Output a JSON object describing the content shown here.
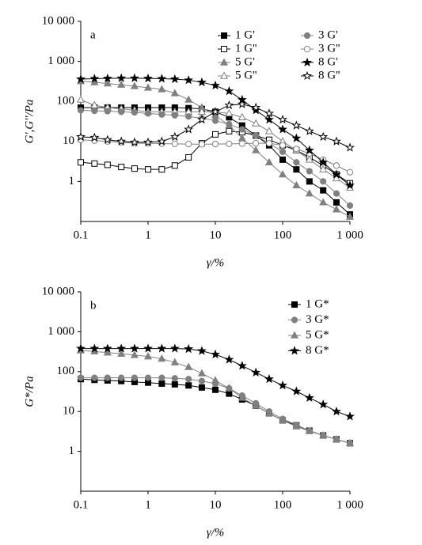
{
  "chart_data": [
    {
      "type": "line",
      "annotation": "a",
      "xlabel": "γ/%",
      "ylabel": "G',G''/Pa",
      "log_x": true,
      "log_y": true,
      "xlim": [
        0.1,
        1000
      ],
      "xticks": [
        0.1,
        1,
        10,
        100,
        {
          "value": 1000,
          "label": "1 000"
        }
      ],
      "ylim": [
        0.1,
        10000
      ],
      "yticks": [
        1,
        10,
        100,
        {
          "value": 1000,
          "label": "1 000"
        },
        {
          "value": 10000,
          "label": "10 000"
        }
      ],
      "x": [
        0.1,
        0.16,
        0.25,
        0.4,
        0.63,
        1,
        1.6,
        2.5,
        4,
        6.3,
        10,
        16,
        25,
        40,
        63,
        100,
        160,
        250,
        400,
        630,
        1000
      ],
      "series": [
        {
          "name": "1 G'",
          "color": "#000000",
          "marker": "square",
          "filled": true,
          "values": [
            70,
            70,
            70,
            70,
            70,
            70,
            70,
            70,
            68,
            65,
            55,
            40,
            25,
            14,
            8,
            3.5,
            2,
            1,
            0.6,
            0.3,
            0.15
          ]
        },
        {
          "name": "1 G''",
          "color": "#000000",
          "marker": "square",
          "filled": false,
          "values": [
            3,
            2.8,
            2.6,
            2.3,
            2.1,
            2,
            2,
            2.5,
            4,
            9,
            15,
            18,
            17,
            14,
            11,
            8,
            6,
            4,
            2.5,
            1.5,
            0.9
          ]
        },
        {
          "name": "5 G'",
          "color": "#808080",
          "marker": "triangle",
          "filled": true,
          "values": [
            320,
            300,
            280,
            260,
            240,
            220,
            200,
            160,
            110,
            70,
            45,
            25,
            12,
            6,
            3,
            1.5,
            0.8,
            0.5,
            0.3,
            0.2,
            0.13
          ]
        },
        {
          "name": "5 G''",
          "color": "#808080",
          "marker": "triangle",
          "filled": false,
          "values": [
            110,
            80,
            70,
            65,
            60,
            55,
            55,
            55,
            55,
            55,
            55,
            50,
            40,
            28,
            18,
            10,
            6,
            3.5,
            2,
            1.2,
            0.7
          ]
        },
        {
          "name": "3 G'",
          "color": "#808080",
          "marker": "circle",
          "filled": true,
          "values": [
            60,
            58,
            57,
            55,
            53,
            50,
            47,
            45,
            42,
            38,
            33,
            27,
            20,
            14,
            9,
            5.5,
            3,
            1.8,
            1,
            0.5,
            0.25
          ]
        },
        {
          "name": "3 G''",
          "color": "#808080",
          "marker": "circle",
          "filled": false,
          "values": [
            11,
            10.5,
            10,
            9.5,
            9,
            9,
            8.8,
            8.7,
            8.6,
            8.5,
            8.6,
            8.7,
            8.8,
            9,
            9,
            8,
            6.5,
            5,
            3.5,
            2.5,
            1.7
          ]
        },
        {
          "name": "8 G'",
          "color": "#000000",
          "marker": "star",
          "filled": true,
          "values": [
            360,
            370,
            375,
            380,
            380,
            375,
            370,
            360,
            340,
            300,
            250,
            180,
            110,
            60,
            35,
            20,
            12,
            6,
            3,
            1.5,
            0.8
          ]
        },
        {
          "name": "8 G''",
          "color": "#000000",
          "marker": "star",
          "filled": false,
          "values": [
            13,
            12.5,
            11,
            10,
            9.5,
            9.5,
            10,
            13,
            20,
            35,
            55,
            80,
            85,
            70,
            50,
            35,
            25,
            18,
            13,
            10,
            7
          ]
        }
      ]
    },
    {
      "type": "line",
      "annotation": "b",
      "xlabel": "γ/%",
      "ylabel": "G*/Pa",
      "log_x": true,
      "log_y": true,
      "xlim": [
        0.1,
        1000
      ],
      "xticks": [
        0.1,
        1,
        10,
        100,
        {
          "value": 1000,
          "label": "1 000"
        }
      ],
      "ylim": [
        0.1,
        10000
      ],
      "yticks": [
        1,
        10,
        100,
        {
          "value": 1000,
          "label": "1 000"
        },
        {
          "value": 10000,
          "label": "10 000"
        }
      ],
      "x": [
        0.1,
        0.16,
        0.25,
        0.4,
        0.63,
        1,
        1.6,
        2.5,
        4,
        6.3,
        10,
        16,
        25,
        40,
        63,
        100,
        160,
        250,
        400,
        630,
        1000
      ],
      "series": [
        {
          "name": "1 G*",
          "color": "#000000",
          "marker": "square",
          "filled": true,
          "values": [
            65,
            62,
            60,
            58,
            55,
            53,
            50,
            48,
            45,
            40,
            35,
            28,
            20,
            14,
            9,
            6,
            4.5,
            3.3,
            2.5,
            2,
            1.6
          ]
        },
        {
          "name": "3 G*",
          "color": "#808080",
          "marker": "circle",
          "filled": true,
          "values": [
            70,
            70,
            70,
            70,
            70,
            70,
            70,
            68,
            65,
            58,
            50,
            38,
            25,
            16,
            10,
            6.5,
            4.6,
            3.3,
            2.5,
            2,
            1.6
          ]
        },
        {
          "name": "5 G*",
          "color": "#808080",
          "marker": "triangle",
          "filled": true,
          "values": [
            340,
            320,
            300,
            280,
            260,
            240,
            210,
            170,
            130,
            90,
            60,
            38,
            22,
            14,
            9,
            6,
            4.2,
            3.2,
            2.5,
            2,
            1.6
          ]
        },
        {
          "name": "8 G*",
          "color": "#000000",
          "marker": "star",
          "filled": true,
          "values": [
            380,
            380,
            380,
            380,
            380,
            380,
            380,
            380,
            370,
            330,
            270,
            200,
            140,
            95,
            65,
            45,
            32,
            22,
            15,
            10,
            7.5
          ]
        }
      ]
    }
  ]
}
